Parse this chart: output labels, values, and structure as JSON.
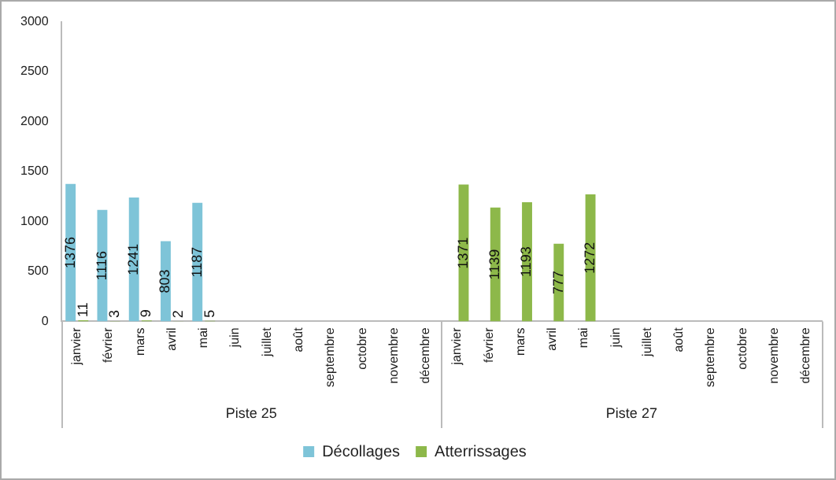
{
  "chart_data": {
    "type": "bar",
    "categories": [
      "janvier",
      "février",
      "mars",
      "avril",
      "mai",
      "juin",
      "juillet",
      "août",
      "septembre",
      "octobre",
      "novembre",
      "décembre",
      "janvier",
      "février",
      "mars",
      "avril",
      "mai",
      "juin",
      "juillet",
      "août",
      "septembre",
      "octobre",
      "novembre",
      "décembre"
    ],
    "series": [
      {
        "name": "Décollages",
        "color": "#7ec4d8",
        "values": [
          1376,
          1116,
          1241,
          803,
          1187,
          null,
          null,
          null,
          null,
          null,
          null,
          null,
          null,
          null,
          null,
          null,
          null,
          null,
          null,
          null,
          null,
          null,
          null,
          null
        ]
      },
      {
        "name": "Atterrissages",
        "color": "#8db84a",
        "values": [
          11,
          3,
          9,
          2,
          5,
          null,
          null,
          null,
          null,
          null,
          null,
          null,
          1371,
          1139,
          1193,
          777,
          1272,
          null,
          null,
          null,
          null,
          null,
          null,
          null
        ]
      }
    ],
    "annotations": [
      "Piste 25",
      "Piste 27"
    ],
    "ylim": [
      0,
      3000
    ],
    "yticks": [
      0,
      500,
      1000,
      1500,
      2000,
      2500,
      3000
    ],
    "grid": false,
    "legend": "bottom",
    "data_labels": true
  }
}
